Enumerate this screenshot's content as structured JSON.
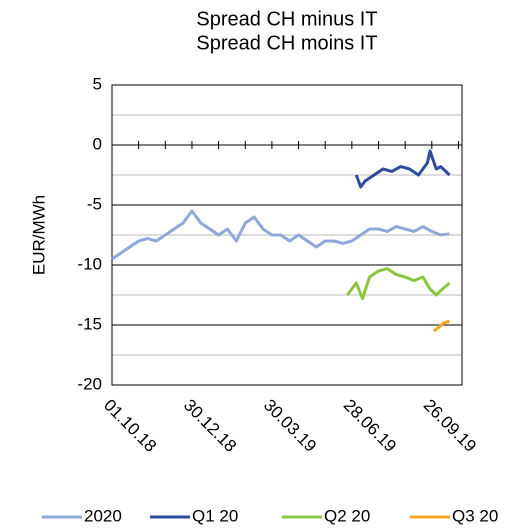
{
  "chart_data": {
    "type": "line",
    "title": "Spread CH minus IT",
    "subtitle": "Spread CH moins IT",
    "y_label": "EUR/MWh",
    "xlim": [
      0,
      394
    ],
    "xticks": [
      {
        "value": 0,
        "label": "01.10.18"
      },
      {
        "value": 90,
        "label": "30.12.18"
      },
      {
        "value": 180,
        "label": "30.03.19"
      },
      {
        "value": 270,
        "label": "28.06.19"
      },
      {
        "value": 360,
        "label": "26.09.19"
      }
    ],
    "x_minor_ticks": [
      30,
      60,
      120,
      150,
      210,
      240,
      300,
      330,
      390
    ],
    "ylim": [
      -20,
      5
    ],
    "yticks": [
      -20,
      -15,
      -10,
      -5,
      0,
      5
    ],
    "y_minor_ticks": [
      -17.5,
      -12.5,
      -7.5,
      -2.5,
      2.5
    ],
    "grid": true,
    "legend": "bottom",
    "series": [
      {
        "name": "2020",
        "color": "#8fa8d8",
        "x": [
          0,
          10,
          20,
          30,
          40,
          50,
          60,
          70,
          80,
          90,
          100,
          110,
          120,
          130,
          140,
          150,
          160,
          170,
          180,
          190,
          200,
          210,
          220,
          230,
          240,
          250,
          260,
          270,
          280,
          290,
          300,
          310,
          320,
          330,
          340,
          350,
          360,
          370,
          380
        ],
        "values": [
          -9.5,
          -9,
          -8.5,
          -8,
          -7.8,
          -8,
          -7.5,
          -7,
          -6.5,
          -5.5,
          -6.5,
          -7,
          -7.5,
          -7,
          -8,
          -6.5,
          -6,
          -7,
          -7.5,
          -7.5,
          -8,
          -7.5,
          -8,
          -8.5,
          -8,
          -8,
          -8.2,
          -8,
          -7.5,
          -7,
          -7,
          -7.2,
          -6.8,
          -7,
          -7.2,
          -6.8,
          -7.2,
          -7.5,
          -7.4
        ]
      },
      {
        "name": "Q1 20",
        "color": "#2f4b9c",
        "x": [
          275,
          280,
          285,
          295,
          305,
          315,
          325,
          335,
          345,
          355,
          358,
          365,
          370,
          380
        ],
        "values": [
          -2.5,
          -3.5,
          -3,
          -2.5,
          -2,
          -2.2,
          -1.8,
          -2,
          -2.5,
          -1.5,
          -0.5,
          -2,
          -1.8,
          -2.5
        ]
      },
      {
        "name": "Q2 20",
        "color": "#8cc63f",
        "x": [
          265,
          270,
          275,
          282,
          290,
          300,
          310,
          320,
          330,
          340,
          350,
          358,
          365,
          372,
          380
        ],
        "values": [
          -12.5,
          -12,
          -11.5,
          -12.8,
          -11,
          -10.5,
          -10.3,
          -10.8,
          -11,
          -11.3,
          -11,
          -12,
          -12.5,
          -12,
          -11.5
        ]
      },
      {
        "name": "Q3 20",
        "color": "#f5a623",
        "x": [
          362,
          368,
          374,
          380
        ],
        "values": [
          -15.5,
          -15.2,
          -14.8,
          -14.7
        ]
      }
    ]
  }
}
